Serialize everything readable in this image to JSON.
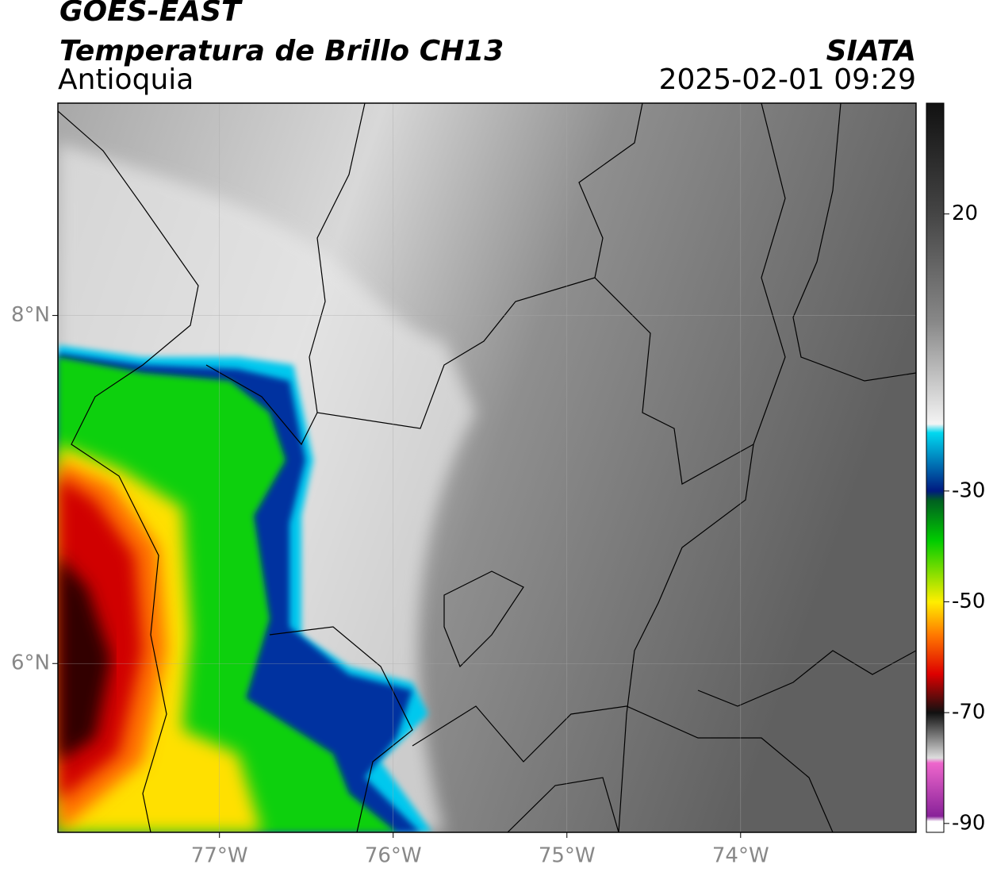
{
  "header": {
    "title": "GOES-EAST",
    "subtitle": "Temperatura de Brillo CH13",
    "region": "Antioquia",
    "source": "SIATA",
    "timestamp": "2025-02-01 09:29"
  },
  "map": {
    "xlim": [
      -77.93,
      -72.99
    ],
    "ylim": [
      5.03,
      9.22
    ],
    "xticks": [
      {
        "value": -77,
        "label": "77°W"
      },
      {
        "value": -76,
        "label": "76°W"
      },
      {
        "value": -75,
        "label": "75°W"
      },
      {
        "value": -74,
        "label": "74°W"
      }
    ],
    "yticks": [
      {
        "value": 8,
        "label": "8°N"
      },
      {
        "value": 6,
        "label": "6°N"
      }
    ]
  },
  "colorbar": {
    "lim": [
      -91.6,
      40
    ],
    "ticks": [
      20,
      -30,
      -50,
      -70,
      -90
    ]
  }
}
